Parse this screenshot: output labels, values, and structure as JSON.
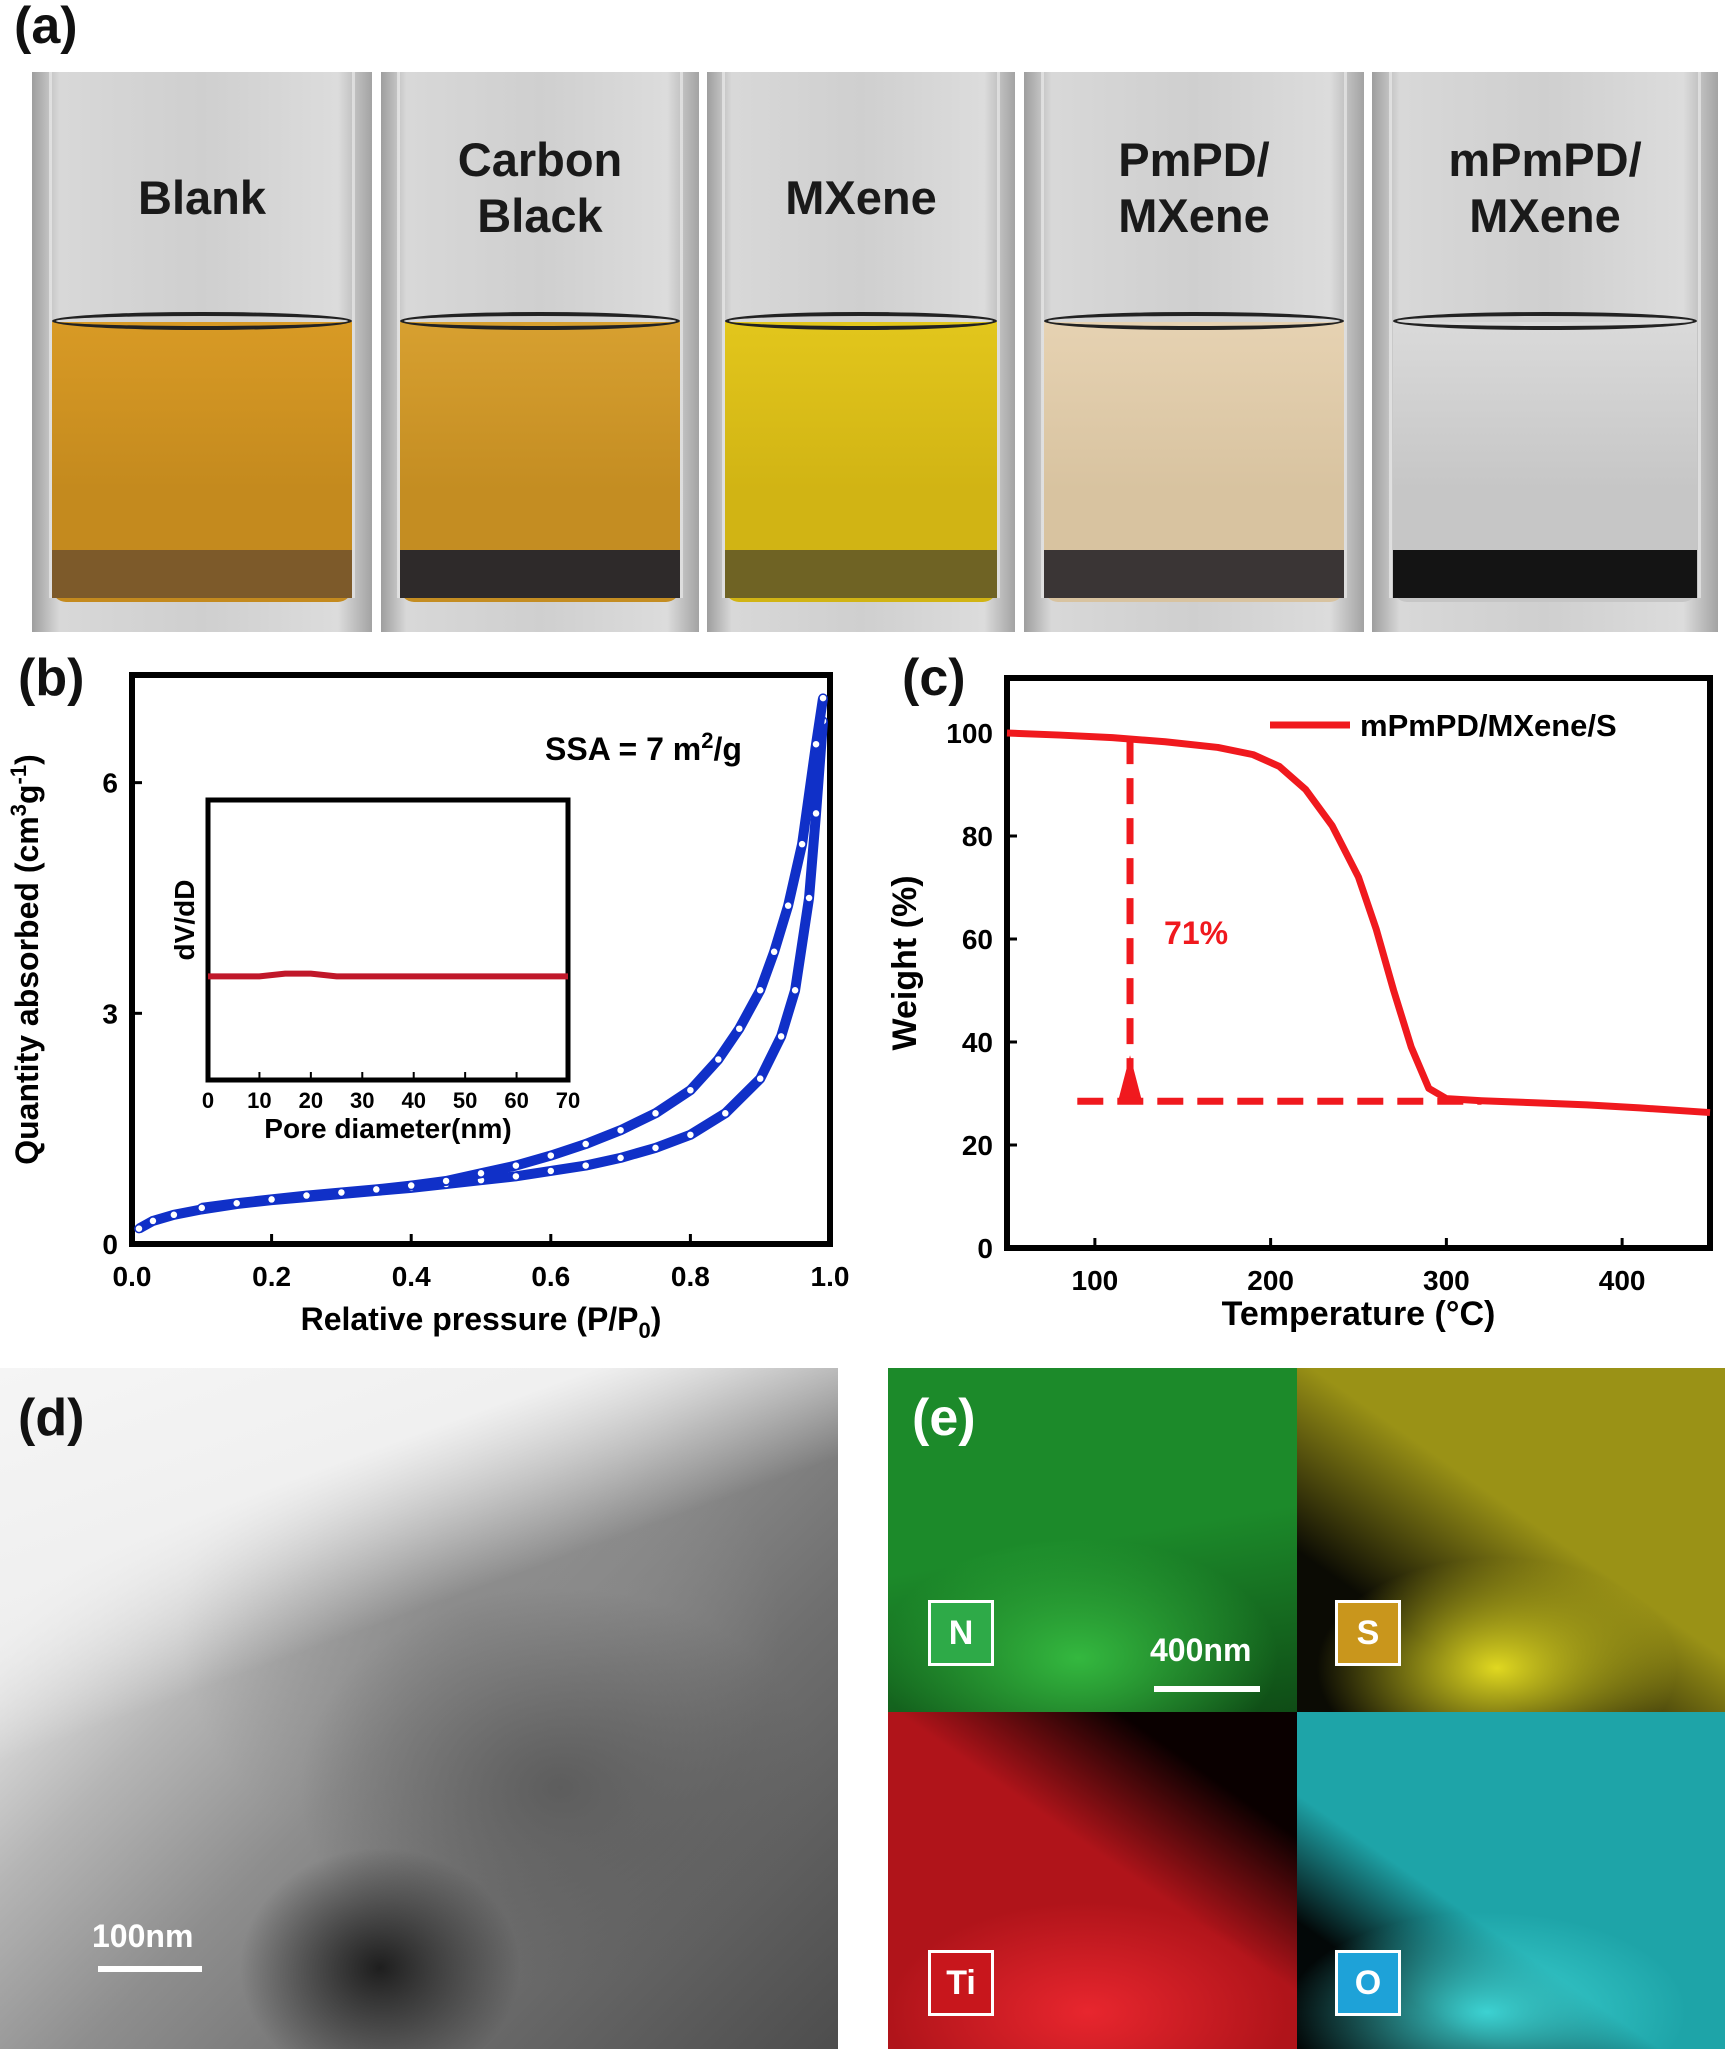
{
  "panels": {
    "a": "(a)",
    "b": "(b)",
    "c": "(c)",
    "d": "(d)",
    "e": "(e)"
  },
  "vials": [
    {
      "label": "Blank",
      "liquid": "#c48a1e",
      "liquid2": "#d89a25",
      "sediment": "#7d5a2a"
    },
    {
      "label": "Carbon\nBlack",
      "liquid": "#c48d22",
      "liquid2": "#d7a030",
      "sediment": "#2e2a2a"
    },
    {
      "label": "MXene",
      "liquid": "#d1b414",
      "liquid2": "#e2c61c",
      "sediment": "#6f6324"
    },
    {
      "label": "PmPD/\nMXene",
      "liquid": "#d8c3a0",
      "liquid2": "#e6d2b2",
      "sediment": "#3a3535"
    },
    {
      "label": "mPmPD/\nMXene",
      "liquid": "#c6c6c6",
      "liquid2": "#dadada",
      "sediment": "#141414"
    }
  ],
  "chart_data": [
    {
      "type": "scatter",
      "panel": "b",
      "xlabel": "Relative pressure (P/P",
      "xlabel_sub": "0",
      "xlabel_end": ")",
      "ylabel": "Quantity absorbed (cm",
      "ylabel_sup1": "3",
      "ylabel_mid": "g",
      "ylabel_sup2": "-1",
      "ylabel_end": ")",
      "xlim": [
        0,
        1.0
      ],
      "ylim": [
        0,
        7.4
      ],
      "xticks": [
        "0.0",
        "0.2",
        "0.4",
        "0.6",
        "0.8",
        "1.0"
      ],
      "xtick_values": [
        0,
        0.2,
        0.4,
        0.6,
        0.8,
        1.0
      ],
      "yticks": [
        "0",
        "3",
        "6"
      ],
      "ytick_values": [
        0,
        3,
        6
      ],
      "annotation": "SSA = 7 m",
      "annotation_sup": "2",
      "annotation_end": "/g",
      "color": "#1030c8",
      "series": [
        {
          "x": [
            0.01,
            0.03,
            0.06,
            0.1,
            0.15,
            0.2,
            0.25,
            0.3,
            0.35,
            0.4,
            0.45,
            0.5,
            0.55,
            0.6,
            0.65,
            0.7,
            0.75,
            0.8,
            0.85,
            0.9,
            0.93,
            0.95,
            0.97,
            0.98,
            0.99
          ],
          "y": [
            0.2,
            0.3,
            0.38,
            0.45,
            0.52,
            0.57,
            0.61,
            0.65,
            0.69,
            0.73,
            0.78,
            0.83,
            0.88,
            0.95,
            1.02,
            1.12,
            1.25,
            1.42,
            1.7,
            2.15,
            2.7,
            3.3,
            4.5,
            5.6,
            6.8
          ]
        },
        {
          "x": [
            0.99,
            0.98,
            0.96,
            0.94,
            0.92,
            0.9,
            0.87,
            0.84,
            0.8,
            0.75,
            0.7,
            0.65,
            0.6,
            0.55,
            0.5,
            0.45,
            0.4,
            0.35,
            0.3,
            0.25,
            0.2,
            0.15,
            0.1
          ],
          "y": [
            7.1,
            6.5,
            5.2,
            4.4,
            3.8,
            3.3,
            2.8,
            2.4,
            2.0,
            1.7,
            1.48,
            1.3,
            1.15,
            1.02,
            0.92,
            0.82,
            0.76,
            0.71,
            0.67,
            0.63,
            0.58,
            0.53,
            0.47
          ]
        }
      ],
      "inset": {
        "type": "line",
        "ylabel": "dV/dD",
        "xlabel": "Pore diameter(nm)",
        "xlim": [
          0,
          70
        ],
        "ylim": [
          0,
          1
        ],
        "xticks": [
          "0",
          "10",
          "20",
          "30",
          "40",
          "50",
          "60",
          "70"
        ],
        "xtick_values": [
          0,
          10,
          20,
          30,
          40,
          50,
          60,
          70
        ],
        "color": "#c0182a",
        "x": [
          0,
          5,
          10,
          15,
          20,
          25,
          30,
          35,
          40,
          45,
          50,
          55,
          60,
          65,
          70
        ],
        "y": [
          0.37,
          0.37,
          0.37,
          0.38,
          0.38,
          0.37,
          0.37,
          0.37,
          0.37,
          0.37,
          0.37,
          0.37,
          0.37,
          0.37,
          0.37
        ]
      }
    },
    {
      "type": "line",
      "panel": "c",
      "xlabel": "Temperature (°C)",
      "ylabel": "Weight (%)",
      "xlim": [
        50,
        450
      ],
      "ylim": [
        0,
        100
      ],
      "xticks": [
        "100",
        "200",
        "300",
        "400"
      ],
      "xtick_values": [
        100,
        200,
        300,
        400
      ],
      "yticks": [
        "0",
        "20",
        "40",
        "60",
        "80",
        "100"
      ],
      "ytick_values": [
        0,
        20,
        40,
        60,
        80,
        100
      ],
      "color": "#f0191e",
      "series": [
        {
          "name": "mPmPD/MXene/S",
          "x": [
            50,
            80,
            110,
            140,
            170,
            190,
            205,
            220,
            235,
            250,
            260,
            270,
            280,
            290,
            300,
            320,
            350,
            380,
            410,
            450
          ],
          "y": [
            100,
            99.6,
            99.1,
            98.3,
            97.2,
            95.8,
            93.5,
            89,
            82,
            72,
            62,
            50,
            39,
            31,
            29,
            28.6,
            28.2,
            27.8,
            27.2,
            26.3
          ]
        }
      ],
      "annotation": "71%",
      "marker_x": 120,
      "marker_y_top": 99,
      "marker_y_bottom": 28.5,
      "baseline_x": [
        90,
        320
      ]
    }
  ],
  "tem": {
    "scale": "100nm"
  },
  "eds": {
    "scale": "400nm",
    "maps": [
      {
        "tag": "N",
        "base": "#1c8a2a",
        "dark": "#0f4c16",
        "tag_bg": "#2eaa48"
      },
      {
        "tag": "S",
        "base": "#9a9216",
        "dark": "#0b0b04",
        "tag_bg": "#c9961c"
      },
      {
        "tag": "Ti",
        "base": "#b0141a",
        "dark": "#0a0000",
        "tag_bg": "#c8161c"
      },
      {
        "tag": "O",
        "base": "#1ea4a8",
        "dark": "#030808",
        "tag_bg": "#1ea2d8"
      }
    ]
  }
}
